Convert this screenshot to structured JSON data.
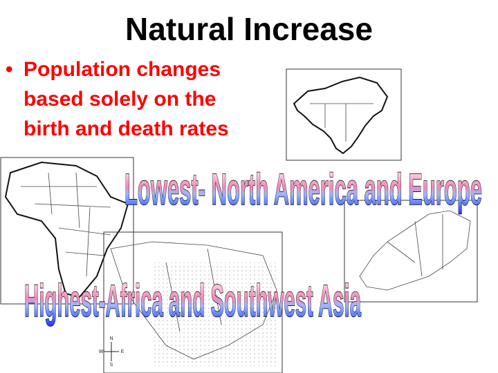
{
  "slide": {
    "title": "Natural Increase",
    "bullet": {
      "lines": [
        "Population changes",
        "based solely on the",
        "birth and death rates"
      ]
    },
    "wordart": [
      "Lowest- North America and Europe",
      "Highest-Africa and Southwest Asia"
    ],
    "compass": {
      "n": "N",
      "w": "W",
      "e": "E",
      "s": "S"
    }
  }
}
